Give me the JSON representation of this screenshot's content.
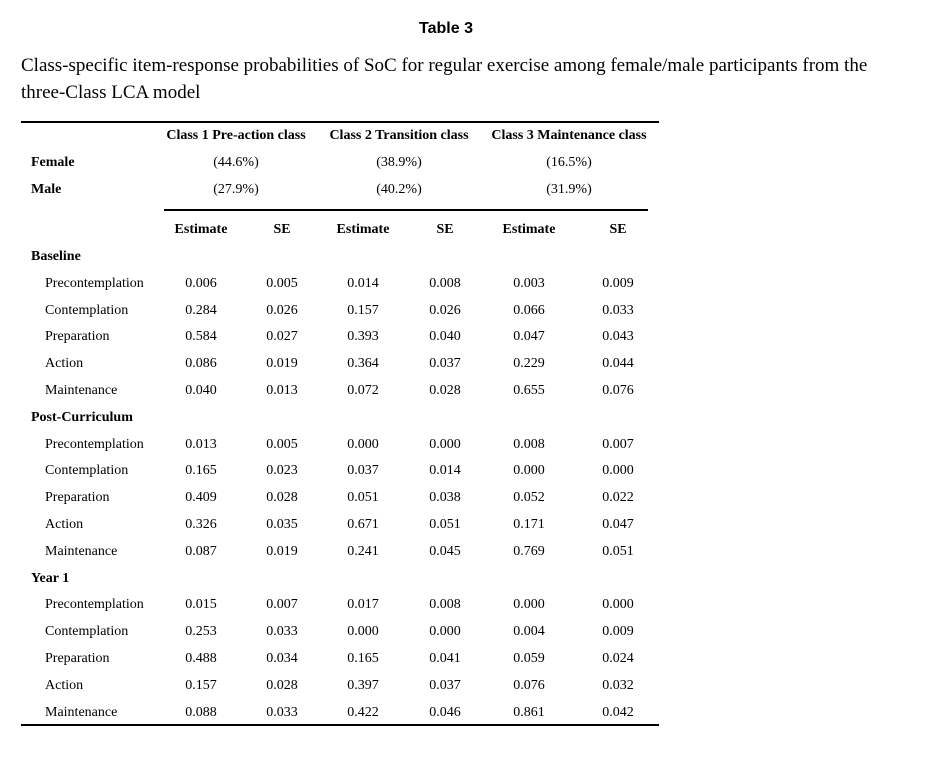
{
  "title": "Table 3",
  "caption": "Class-specific item-response probabilities of SoC for regular exercise among female/male participants from the three-Class LCA model",
  "classes": [
    {
      "name": "Class 1 Pre-action class",
      "female": "(44.6%)",
      "male": "(27.9%)"
    },
    {
      "name": "Class 2 Transition class",
      "female": "(38.9%)",
      "male": "(40.2%)"
    },
    {
      "name": "Class 3 Maintenance class",
      "female": "(16.5%)",
      "male": "(31.9%)"
    }
  ],
  "female_label": "Female",
  "male_label": "Male",
  "estimate_label": "Estimate",
  "se_label": "SE",
  "sections": [
    {
      "name": "Baseline",
      "rows": [
        {
          "label": "Precontemplation",
          "values": [
            "0.006",
            "0.005",
            "0.014",
            "0.008",
            "0.003",
            "0.009"
          ]
        },
        {
          "label": "Contemplation",
          "values": [
            "0.284",
            "0.026",
            "0.157",
            "0.026",
            "0.066",
            "0.033"
          ]
        },
        {
          "label": "Preparation",
          "values": [
            "0.584",
            "0.027",
            "0.393",
            "0.040",
            "0.047",
            "0.043"
          ]
        },
        {
          "label": "Action",
          "values": [
            "0.086",
            "0.019",
            "0.364",
            "0.037",
            "0.229",
            "0.044"
          ]
        },
        {
          "label": "Maintenance",
          "values": [
            "0.040",
            "0.013",
            "0.072",
            "0.028",
            "0.655",
            "0.076"
          ]
        }
      ]
    },
    {
      "name": "Post-Curriculum",
      "rows": [
        {
          "label": "Precontemplation",
          "values": [
            "0.013",
            "0.005",
            "0.000",
            "0.000",
            "0.008",
            "0.007"
          ]
        },
        {
          "label": "Contemplation",
          "values": [
            "0.165",
            "0.023",
            "0.037",
            "0.014",
            "0.000",
            "0.000"
          ]
        },
        {
          "label": "Preparation",
          "values": [
            "0.409",
            "0.028",
            "0.051",
            "0.038",
            "0.052",
            "0.022"
          ]
        },
        {
          "label": "Action",
          "values": [
            "0.326",
            "0.035",
            "0.671",
            "0.051",
            "0.171",
            "0.047"
          ]
        },
        {
          "label": "Maintenance",
          "values": [
            "0.087",
            "0.019",
            "0.241",
            "0.045",
            "0.769",
            "0.051"
          ]
        }
      ]
    },
    {
      "name": "Year 1",
      "rows": [
        {
          "label": "Precontemplation",
          "values": [
            "0.015",
            "0.007",
            "0.017",
            "0.008",
            "0.000",
            "0.000"
          ]
        },
        {
          "label": "Contemplation",
          "values": [
            "0.253",
            "0.033",
            "0.000",
            "0.000",
            "0.004",
            "0.009"
          ]
        },
        {
          "label": "Preparation",
          "values": [
            "0.488",
            "0.034",
            "0.165",
            "0.041",
            "0.059",
            "0.024"
          ]
        },
        {
          "label": "Action",
          "values": [
            "0.157",
            "0.028",
            "0.397",
            "0.037",
            "0.076",
            "0.032"
          ]
        },
        {
          "label": "Maintenance",
          "values": [
            "0.088",
            "0.033",
            "0.422",
            "0.046",
            "0.861",
            "0.042"
          ]
        }
      ]
    }
  ]
}
